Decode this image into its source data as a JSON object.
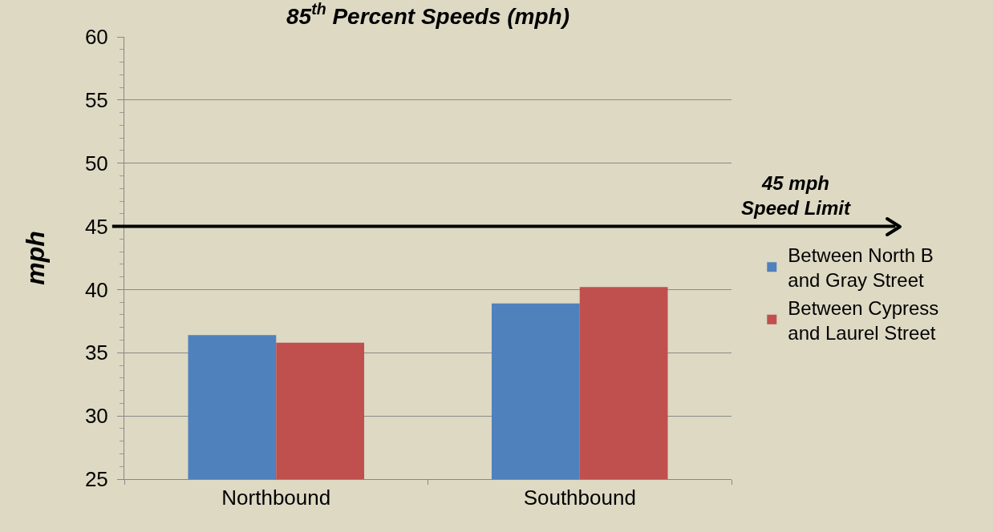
{
  "chart_data": {
    "type": "bar",
    "title": "85$^{th}$ Percent Speeds (mph)",
    "ylabel": "mph",
    "categories": [
      "Northbound",
      "Southbound"
    ],
    "series": [
      {
        "name": "Between North B and Gray Street",
        "color": "#4f81bd",
        "values": [
          36.4,
          38.9
        ]
      },
      {
        "name": "Between Cypress and Laurel Street",
        "color": "#c0504d",
        "values": [
          35.8,
          40.2
        ]
      }
    ],
    "ylim": [
      25,
      60
    ],
    "yticks": [
      25,
      30,
      35,
      40,
      45,
      50,
      55,
      60
    ],
    "grid": "y",
    "legend": "right",
    "ref_lines": [
      {
        "axis": "y",
        "value": 45,
        "label": "45 mph\nSpeed Limit",
        "color": "#000000"
      }
    ]
  }
}
